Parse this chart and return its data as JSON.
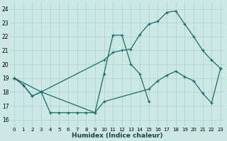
{
  "xlabel": "Humidex (Indice chaleur)",
  "xlim": [
    -0.5,
    23.5
  ],
  "ylim": [
    15.5,
    24.5
  ],
  "yticks": [
    16,
    17,
    18,
    19,
    20,
    21,
    22,
    23,
    24
  ],
  "xticks": [
    0,
    1,
    2,
    3,
    4,
    5,
    6,
    7,
    8,
    9,
    10,
    11,
    12,
    13,
    14,
    15,
    16,
    17,
    18,
    19,
    20,
    21,
    22,
    23
  ],
  "bg_color": "#cce8e4",
  "grid_color": "#aecfcc",
  "line_color": "#1a6b6b",
  "line1_x": [
    0,
    1,
    2,
    3,
    4,
    5,
    6,
    7,
    8,
    9,
    10,
    11,
    12,
    13,
    14,
    15
  ],
  "line1_y": [
    19,
    18.5,
    17.7,
    18.0,
    16.5,
    16.5,
    16.5,
    16.5,
    16.5,
    16.5,
    19.3,
    22.1,
    22.1,
    20.0,
    19.3,
    17.3
  ],
  "line2_x": [
    0,
    1,
    2,
    3,
    10,
    11,
    12,
    13,
    14,
    15,
    16,
    17,
    18,
    19,
    20,
    21,
    22,
    23
  ],
  "line2_y": [
    19,
    18.5,
    17.7,
    18.0,
    20.3,
    20.85,
    21.0,
    21.1,
    22.15,
    22.9,
    23.1,
    23.75,
    23.85,
    22.9,
    22.0,
    21.0,
    20.3,
    19.7
  ],
  "line3_x": [
    0,
    3,
    9,
    10,
    15,
    16,
    17,
    18,
    19,
    20,
    21,
    22,
    23
  ],
  "line3_y": [
    19,
    18.0,
    16.5,
    17.3,
    18.2,
    18.8,
    19.2,
    19.5,
    19.1,
    18.8,
    17.9,
    17.2,
    19.7
  ]
}
